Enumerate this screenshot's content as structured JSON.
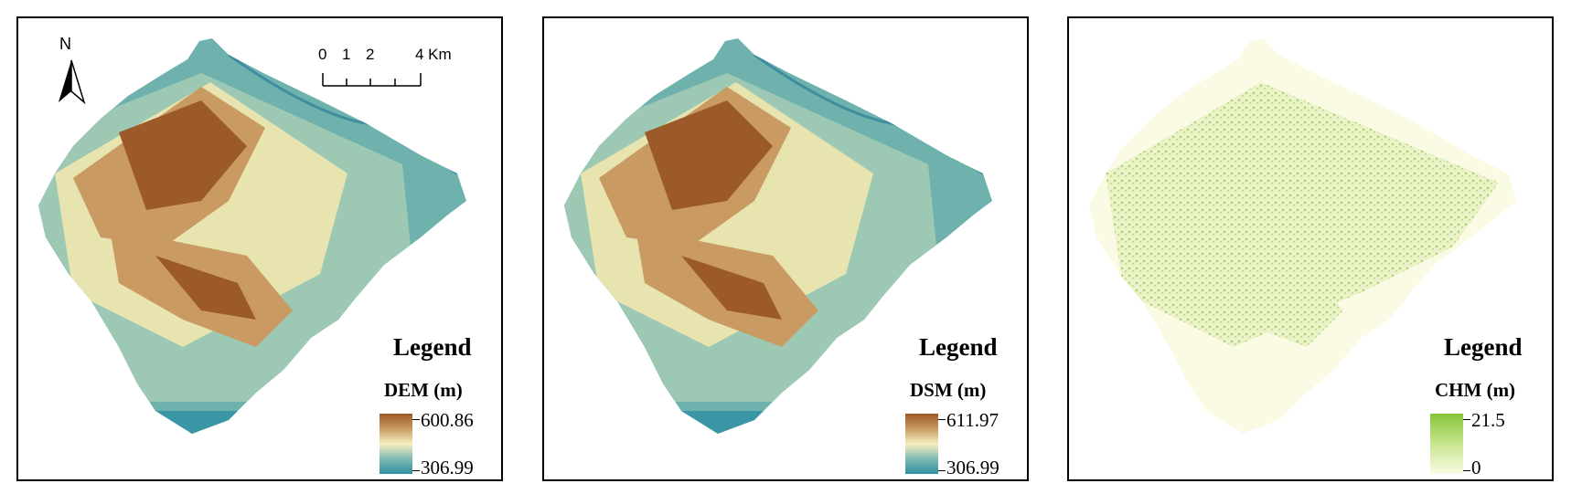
{
  "north_arrow": {
    "label": "N",
    "icon": "north-arrow-icon"
  },
  "scale_bar": {
    "labels": [
      "0",
      "1",
      "2",
      "4 Km"
    ]
  },
  "panels": [
    {
      "legend_title": "Legend",
      "variable": "DEM (m)",
      "max": "600.86",
      "min": "306.99",
      "ramp_colors": [
        "#9c5a2a",
        "#c99a62",
        "#f6efbf",
        "#7fb9b4",
        "#2f8fa0"
      ]
    },
    {
      "legend_title": "Legend",
      "variable": "DSM (m)",
      "max": "611.97",
      "min": "306.99",
      "ramp_colors": [
        "#9c5a2a",
        "#c99a62",
        "#f6efbf",
        "#7fb9b4",
        "#2f8fa0"
      ]
    },
    {
      "legend_title": "Legend",
      "variable": "CHM (m)",
      "max": "21.5",
      "min": "0",
      "ramp_colors": [
        "#86c43a",
        "#c8e58e",
        "#fbfbe5"
      ]
    }
  ]
}
